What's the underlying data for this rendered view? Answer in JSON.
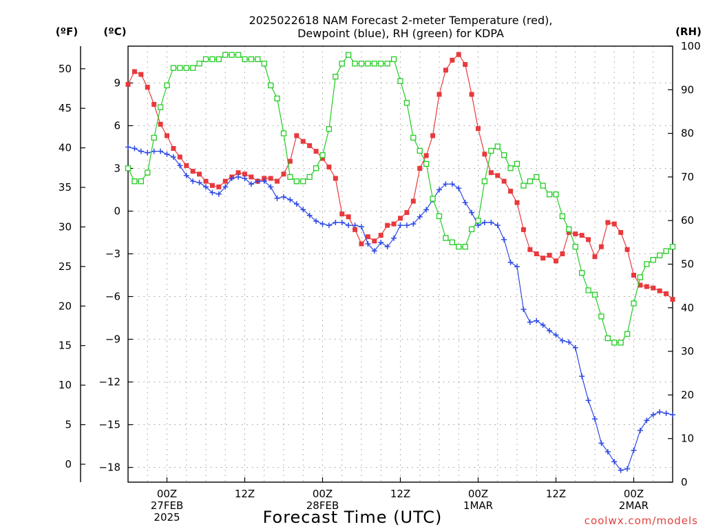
{
  "chart_data": {
    "type": "line",
    "title_line1": "2025022618 NAM Forecast 2-meter Temperature (red),",
    "title_line2": "Dewpoint (blue), RH (green) for KDPA",
    "xlabel": "Forecast Time (UTC)",
    "credit": "coolwx.com/models",
    "units": {
      "fahrenheit": "(ºF)",
      "celsius": "(ºC)",
      "rh": "(RH)"
    },
    "x": {
      "start_forecast_hour": 0,
      "end_forecast_hour": 84,
      "step_hours": 1
    },
    "x_ticks": [
      {
        "hour": 6,
        "lines": [
          "00Z",
          "27FEB",
          "2025"
        ]
      },
      {
        "hour": 18,
        "lines": [
          "12Z"
        ]
      },
      {
        "hour": 30,
        "lines": [
          "00Z",
          "28FEB"
        ]
      },
      {
        "hour": 42,
        "lines": [
          "12Z"
        ]
      },
      {
        "hour": 54,
        "lines": [
          "00Z",
          "1MAR"
        ]
      },
      {
        "hour": 66,
        "lines": [
          "12Z"
        ]
      },
      {
        "hour": 78,
        "lines": [
          "00Z",
          "2MAR"
        ]
      }
    ],
    "yaxis_celsius": {
      "ticks": [
        9,
        6,
        3,
        0,
        -3,
        -6,
        -9,
        -12,
        -15,
        -18
      ],
      "labels": [
        "9",
        "6",
        "3",
        "0",
        "−3",
        "−6",
        "−9",
        "−12",
        "−15",
        "−18"
      ]
    },
    "yaxis_fahrenheit": {
      "ticks": [
        50,
        45,
        40,
        35,
        30,
        25,
        20,
        15,
        10,
        5,
        0
      ],
      "labels": [
        "50",
        "45",
        "40",
        "35",
        "30",
        "25",
        "20",
        "15",
        "10",
        "5",
        "0"
      ]
    },
    "yaxis_rh": {
      "ticks": [
        100,
        90,
        80,
        70,
        60,
        50,
        40,
        30,
        20,
        10,
        0
      ],
      "labels": [
        "100",
        "90",
        "80",
        "70",
        "60",
        "50",
        "40",
        "30",
        "20",
        "10",
        "0"
      ]
    },
    "colors": {
      "temperature": "#e8393c",
      "dewpoint": "#2d49e6",
      "rh": "#22cc22"
    },
    "series": [
      {
        "name": "Temperature",
        "unit": "C",
        "marker": "filled-square",
        "values": [
          8.9,
          9.8,
          9.6,
          8.7,
          7.5,
          6.1,
          5.3,
          4.4,
          3.8,
          3.2,
          2.8,
          2.6,
          2.1,
          1.8,
          1.7,
          2.1,
          2.4,
          2.7,
          2.6,
          2.4,
          2.1,
          2.3,
          2.3,
          2.1,
          2.6,
          3.5,
          5.3,
          4.9,
          4.6,
          4.2,
          3.7,
          3.1,
          2.3,
          -0.2,
          -0.4,
          -1.3,
          -2.3,
          -1.8,
          -2.1,
          -1.7,
          -1.0,
          -0.9,
          -0.5,
          -0.1,
          0.7,
          3.0,
          3.9,
          5.3,
          8.2,
          9.9,
          10.6,
          11.0,
          10.3,
          8.2,
          5.8,
          4.0,
          2.7,
          2.5,
          2.1,
          1.4,
          0.6,
          -1.3,
          -2.7,
          -3.0,
          -3.3,
          -3.1,
          -3.5,
          -3.0,
          -1.5,
          -1.6,
          -1.7,
          -2.0,
          -3.2,
          -2.5,
          -0.8,
          -0.9,
          -1.5,
          -2.7,
          -4.5,
          -5.2,
          -5.3,
          -5.4,
          -5.6,
          -5.8,
          -6.2
        ]
      },
      {
        "name": "Dewpoint",
        "unit": "C",
        "marker": "plus",
        "values": [
          4.5,
          4.4,
          4.2,
          4.1,
          4.2,
          4.2,
          4.0,
          3.8,
          3.2,
          2.5,
          2.1,
          2.0,
          1.7,
          1.3,
          1.2,
          1.7,
          2.3,
          2.4,
          2.3,
          1.9,
          2.1,
          2.1,
          1.7,
          0.9,
          1.0,
          0.8,
          0.5,
          0.1,
          -0.3,
          -0.7,
          -0.9,
          -1.0,
          -0.8,
          -0.8,
          -1.0,
          -1.0,
          -1.1,
          -2.3,
          -2.8,
          -2.2,
          -2.5,
          -1.9,
          -1.0,
          -1.0,
          -0.9,
          -0.4,
          0.1,
          0.8,
          1.5,
          1.9,
          1.9,
          1.6,
          0.6,
          -0.1,
          -1.0,
          -0.8,
          -0.8,
          -1.0,
          -2.0,
          -3.6,
          -3.9,
          -6.9,
          -7.8,
          -7.7,
          -8.0,
          -8.4,
          -8.7,
          -9.1,
          -9.2,
          -9.6,
          -11.6,
          -13.3,
          -14.6,
          -16.3,
          -16.9,
          -17.6,
          -18.2,
          -18.1,
          -16.8,
          -15.4,
          -14.7,
          -14.3,
          -14.1,
          -14.2,
          -14.3
        ]
      },
      {
        "name": "RH",
        "unit": "%",
        "marker": "open-square",
        "values": [
          72,
          69,
          69,
          71,
          79,
          86,
          91,
          95,
          95,
          95,
          95,
          96,
          97,
          97,
          97,
          98,
          98,
          98,
          97,
          97,
          97,
          96,
          91,
          88,
          80,
          70,
          69,
          69,
          70,
          72,
          75,
          81,
          93,
          96,
          98,
          96,
          96,
          96,
          96,
          96,
          96,
          97,
          92,
          87,
          79,
          76,
          73,
          65,
          61,
          56,
          55,
          54,
          54,
          58,
          60,
          69,
          76,
          77,
          75,
          72,
          73,
          68,
          69,
          70,
          68,
          66,
          66,
          61,
          58,
          54,
          48,
          44,
          43,
          38,
          33,
          32,
          32,
          34,
          41,
          47,
          50,
          51,
          52,
          53,
          54
        ]
      }
    ]
  }
}
